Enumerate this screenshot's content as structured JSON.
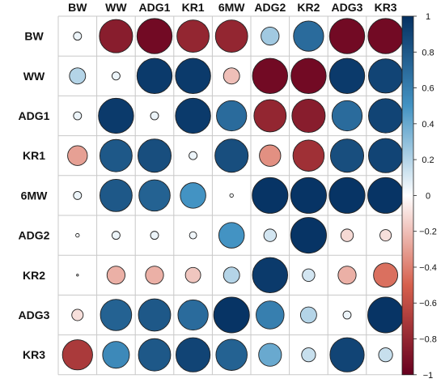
{
  "chart_data": {
    "type": "heatmap",
    "variables": [
      "BW",
      "WW",
      "ADG1",
      "KR1",
      "6MW",
      "ADG2",
      "KR2",
      "ADG3",
      "KR3"
    ],
    "matrix": [
      [
        0.05,
        -0.85,
        -0.95,
        -0.8,
        -0.8,
        0.25,
        0.7,
        -0.95,
        -0.95
      ],
      [
        0.2,
        0.05,
        0.95,
        0.95,
        -0.2,
        -0.95,
        -0.95,
        0.95,
        0.9
      ],
      [
        0.05,
        0.95,
        0.05,
        0.95,
        0.7,
        -0.8,
        -0.85,
        0.7,
        0.9
      ],
      [
        -0.3,
        0.8,
        0.85,
        0.05,
        0.85,
        -0.35,
        -0.75,
        0.85,
        0.9
      ],
      [
        0.05,
        0.8,
        0.75,
        0.5,
        0.01,
        0.98,
        0.98,
        0.98,
        0.98
      ],
      [
        0.01,
        0.05,
        0.05,
        0.04,
        0.5,
        0.12,
        0.98,
        -0.12,
        -0.1
      ],
      [
        0.0,
        -0.25,
        -0.25,
        -0.18,
        0.2,
        0.95,
        0.12,
        -0.25,
        -0.45
      ],
      [
        -0.1,
        0.75,
        0.8,
        0.7,
        0.98,
        0.6,
        0.2,
        0.05,
        0.98
      ],
      [
        -0.7,
        0.55,
        0.8,
        0.9,
        0.75,
        0.4,
        0.15,
        0.9,
        0.15
      ]
    ],
    "colorbar": {
      "min": -1,
      "max": 1,
      "ticks": [
        1,
        0.8,
        0.6,
        0.4,
        0.2,
        0,
        -0.2,
        -0.4,
        -0.6,
        -0.8,
        -1
      ],
      "tick_labels": [
        "1",
        "0.8",
        "0.6",
        "0.4",
        "0.2",
        "0",
        "−0.2",
        "−0.4",
        "−0.6",
        "−0.8",
        "−1"
      ]
    },
    "colors": {
      "negative": "#67001f",
      "neg_mid": "#d6604d",
      "zero": "#ffffff",
      "pos_mid": "#4393c3",
      "positive": "#053061",
      "grid": "#c8c8c8",
      "circle_stroke": "#222222"
    },
    "grid": true,
    "legend": "right"
  }
}
